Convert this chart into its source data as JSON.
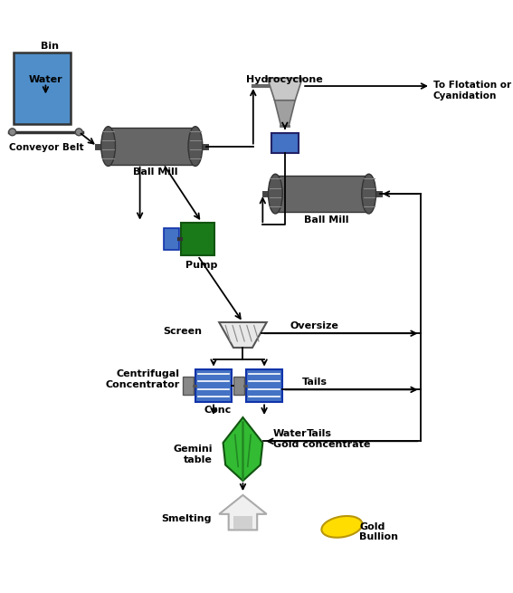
{
  "bg_color": "#ffffff",
  "fig_width": 5.67,
  "fig_height": 6.55,
  "labels": {
    "bin": "Bin",
    "water": "Water",
    "conveyor_belt": "Conveyor Belt",
    "ball_mill1": "Ball Mill",
    "ball_mill2": "Ball Mill",
    "hydrocyclone": "Hydrocyclone",
    "to_flotation": "To Flotation or\nCyanidation",
    "pump": "Pump",
    "screen": "Screen",
    "oversize": "Oversize",
    "centrifugal": "Centrifugal\nConcentrator",
    "conc": "Conc",
    "tails1": "Tails",
    "tails2": "Tails",
    "water2": "Water",
    "gemini": "Gemini\ntable",
    "gold_concentrate": "Gold concentrate",
    "smelting": "Smelting",
    "gold_bullion": "Gold\nBullion"
  },
  "colors": {
    "bin_fill": "#4f8ec9",
    "mill_body": "#666666",
    "mill_end_dark": "#555555",
    "mill_end_light": "#999999",
    "pump_green": "#1a7a1a",
    "pump_blue": "#4472c4",
    "hydrocyclone_top": "#c8c8c8",
    "hydrocyclone_bot": "#a0a0a0",
    "hydrocyclone_box": "#4472c4",
    "screen_fill": "#e0e0e0",
    "screen_lines": "#888888",
    "concentrator_blue": "#4472c4",
    "concentrator_gray": "#888888",
    "gemini_green": "#33bb33",
    "gemini_stripe": "#228822",
    "gold_yellow": "#ffdd00",
    "arrow_color": "#000000",
    "text_color": "#000000",
    "bold_text": "#000000"
  }
}
